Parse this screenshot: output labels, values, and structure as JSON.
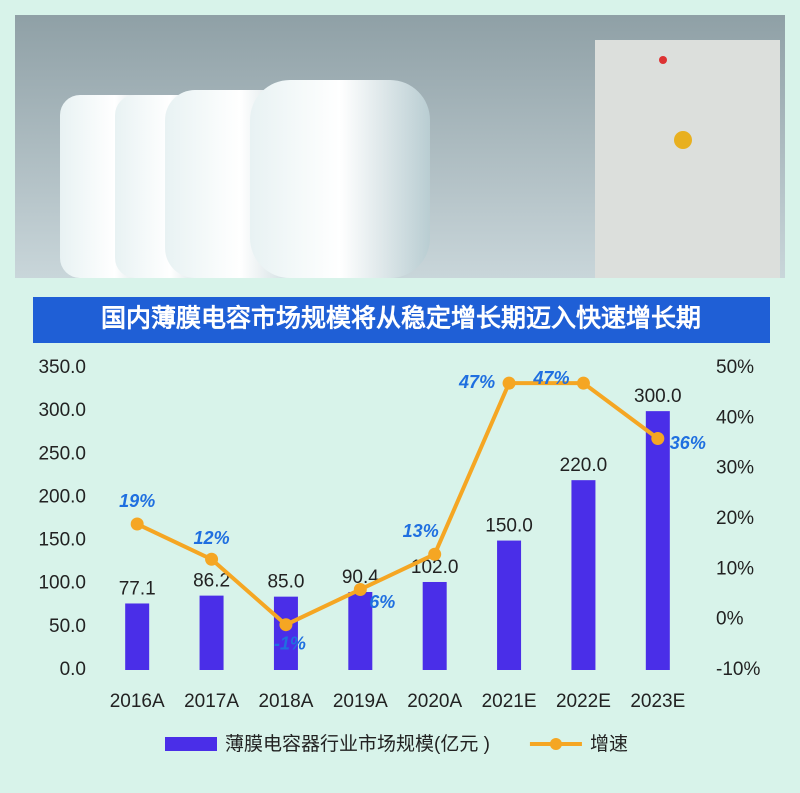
{
  "chart_data": {
    "type": "bar-line",
    "title": "国内薄膜电容市场规模将从稳定增长期迈入快速增长期",
    "categories": [
      "2016A",
      "2017A",
      "2018A",
      "2019A",
      "2020A",
      "2021E",
      "2022E",
      "2023E"
    ],
    "series": [
      {
        "name": "薄膜电容器行业市场规模(亿元 )",
        "type": "bar",
        "color": "#4a2ee8",
        "values": [
          77.1,
          86.2,
          85.0,
          90.4,
          102.0,
          150.0,
          220.0,
          300.0
        ],
        "value_labels": [
          "77.1",
          "86.2",
          "85.0",
          "90.4",
          "102.0",
          "150.0",
          "220.0",
          "300.0"
        ]
      },
      {
        "name": "增速",
        "type": "line",
        "axis": "y2",
        "color": "#f5a623",
        "values": [
          19,
          12,
          -1,
          6,
          13,
          47,
          47,
          36
        ],
        "value_labels": [
          "19%",
          "12%",
          "-1%",
          "6%",
          "13%",
          "47%",
          "47%",
          "36%"
        ]
      }
    ],
    "ylim": [
      0,
      350
    ],
    "yticks": [
      {
        "value": 0,
        "label": "0.0"
      },
      {
        "value": 50,
        "label": "50.0"
      },
      {
        "value": 100,
        "label": "100.0"
      },
      {
        "value": 150,
        "label": "150.0"
      },
      {
        "value": 200,
        "label": "200.0"
      },
      {
        "value": 250,
        "label": "250.0"
      },
      {
        "value": 300,
        "label": "300.0"
      },
      {
        "value": 350,
        "label": "350.0"
      }
    ],
    "y2lim": [
      -10,
      50
    ],
    "y2ticks": [
      {
        "value": -10,
        "label": "-10%"
      },
      {
        "value": 0,
        "label": "0%"
      },
      {
        "value": 10,
        "label": "10%"
      },
      {
        "value": 20,
        "label": "20%"
      },
      {
        "value": 30,
        "label": "30%"
      },
      {
        "value": 40,
        "label": "40%"
      },
      {
        "value": 50,
        "label": "50%"
      }
    ],
    "grid": false,
    "legend": "bottom"
  }
}
